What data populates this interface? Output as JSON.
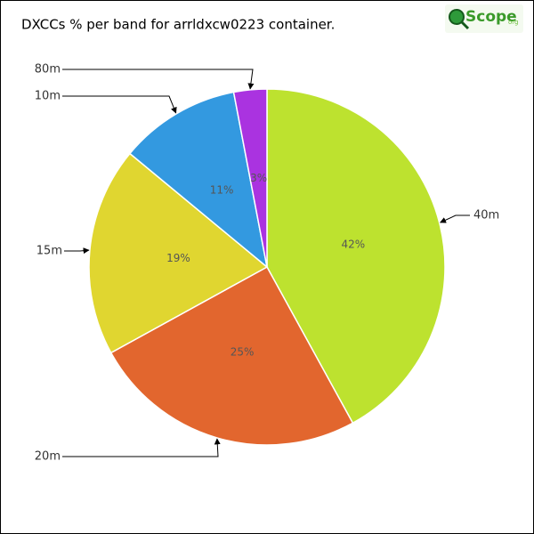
{
  "chart_data": {
    "type": "pie",
    "title": "DXCCs % per band for arrldxcw0223 container.",
    "categories": [
      "40m",
      "20m",
      "15m",
      "10m",
      "80m"
    ],
    "values": [
      42,
      25,
      19,
      11,
      3
    ],
    "value_labels": [
      "42%",
      "25%",
      "19%",
      "11%",
      "3%"
    ],
    "colors": [
      "#bde22f",
      "#e2662e",
      "#e0d630",
      "#3399e0",
      "#aa33e0"
    ]
  },
  "logo": {
    "text": "Scope",
    "suffix": "org"
  }
}
